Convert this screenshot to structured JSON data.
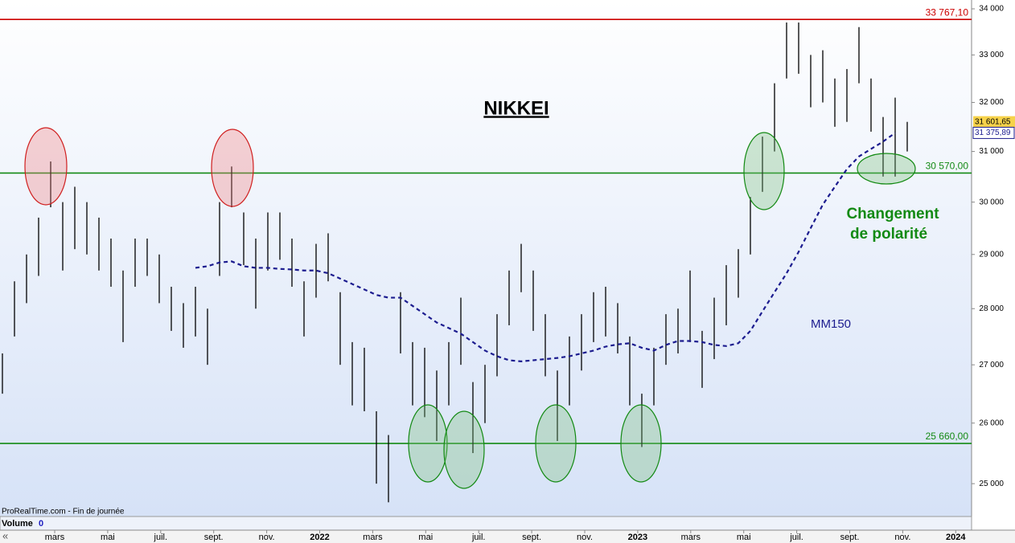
{
  "chart_data": {
    "type": "ohlc",
    "title": "NIKKEI",
    "source": "ProRealTime.com - Fin de journée",
    "volume_label": "Volume",
    "volume_value": "0",
    "nav": "«",
    "annotation": "Changement de polarité",
    "log_scale": true,
    "color": "#000000",
    "ylim": [
      24474,
      34195
    ],
    "yticks": [
      {
        "value": 34000,
        "label": "34 000"
      },
      {
        "value": 33000,
        "label": "33 000"
      },
      {
        "value": 32000,
        "label": "32 000"
      },
      {
        "value": 31000,
        "label": "31 000"
      },
      {
        "value": 30000,
        "label": "30 000"
      },
      {
        "value": 29000,
        "label": "29 000"
      },
      {
        "value": 28000,
        "label": "28 000"
      },
      {
        "value": 27000,
        "label": "27 000"
      },
      {
        "value": 26000,
        "label": "26 000"
      },
      {
        "value": 25000,
        "label": "25 000"
      }
    ],
    "categories": [
      "mars",
      "mai",
      "juil.",
      "sept.",
      "nov.",
      "2022",
      "mars",
      "mai",
      "juil.",
      "sept.",
      "nov.",
      "2023",
      "mars",
      "mai",
      "juil.",
      "sept.",
      "nov.",
      "2024"
    ],
    "low": [
      26500,
      27500,
      28100,
      28600,
      29900,
      28700,
      29100,
      29000,
      28700,
      28400,
      27400,
      28400,
      28600,
      28100,
      27600,
      27300,
      27500,
      27000,
      28600,
      29900,
      28800,
      28000,
      28700,
      28900,
      28400,
      27500,
      28200,
      28500,
      27000,
      26300,
      26200,
      25000,
      24700,
      27200,
      26300,
      26100,
      25700,
      26300,
      27000,
      25500,
      26000,
      26800,
      27700,
      28300,
      27600,
      26800,
      25700,
      26300,
      26900,
      27400,
      27500,
      27200,
      26300,
      25600,
      26300,
      27000,
      27200,
      27400,
      26600,
      27100,
      27700,
      28200,
      29000,
      30200,
      31000,
      32500,
      32600,
      31900,
      32000,
      31500,
      31600,
      32400,
      31400,
      30500,
      30500,
      31000
    ],
    "high": [
      27200,
      28500,
      29000,
      29700,
      30800,
      30000,
      30300,
      30000,
      29700,
      29300,
      28700,
      29300,
      29300,
      29000,
      28400,
      28100,
      28400,
      28000,
      30000,
      30700,
      29800,
      29300,
      29800,
      29800,
      29300,
      28500,
      29200,
      29400,
      28300,
      27400,
      27300,
      26200,
      25800,
      28300,
      27400,
      27300,
      26900,
      27400,
      28200,
      26700,
      27000,
      27900,
      28700,
      29200,
      28700,
      27900,
      26900,
      27500,
      27900,
      28300,
      28400,
      28100,
      27500,
      26500,
      27300,
      27900,
      28000,
      28700,
      27600,
      28200,
      28800,
      29100,
      30100,
      31300,
      32400,
      33700,
      33700,
      33000,
      33100,
      32500,
      32700,
      33600,
      32500,
      31700,
      32100,
      31600
    ],
    "moving_average": {
      "name": "MM150",
      "color": "#1c1c8f",
      "values": [
        null,
        null,
        null,
        null,
        null,
        null,
        null,
        null,
        null,
        null,
        null,
        null,
        null,
        null,
        null,
        null,
        28750,
        28780,
        28850,
        28870,
        28780,
        28750,
        28750,
        28730,
        28720,
        28700,
        28700,
        28650,
        28550,
        28450,
        28350,
        28250,
        28200,
        28200,
        28050,
        27900,
        27750,
        27650,
        27550,
        27400,
        27250,
        27150,
        27080,
        27060,
        27080,
        27100,
        27120,
        27150,
        27200,
        27250,
        27320,
        27360,
        27380,
        27300,
        27250,
        27350,
        27420,
        27420,
        27400,
        27350,
        27330,
        27380,
        27600,
        27950,
        28300,
        28650,
        29050,
        29500,
        29950,
        30300,
        30650,
        30900,
        31050,
        31200,
        31375.89,
        null
      ],
      "last": {
        "value": 31375.89,
        "label": "31 375,89"
      }
    },
    "last_price": {
      "value": 31601.65,
      "label": "31 601,65"
    },
    "levels": [
      {
        "value": 33767.1,
        "label": "33 767,10",
        "color": "#cc0000"
      },
      {
        "value": 30570,
        "label": "30 570,00",
        "color": "#138a13"
      },
      {
        "value": 25660,
        "label": "25 660,00",
        "color": "#138a13"
      }
    ]
  }
}
